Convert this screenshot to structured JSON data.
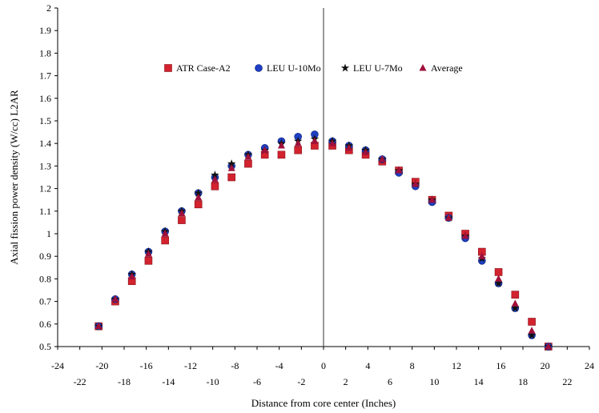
{
  "chart_data": {
    "type": "scatter",
    "title": "",
    "xlabel": "Distance from core center (Inches)",
    "ylabel": "Axial fission power density (W/cc) L2AR",
    "xlim": [
      -24,
      24
    ],
    "ylim": [
      0.5,
      2
    ],
    "x_ticks_upper": [
      "-24",
      "-20",
      "-16",
      "-12",
      "-8",
      "-4",
      "0",
      "4",
      "8",
      "12",
      "16",
      "20",
      "24"
    ],
    "x_ticks_lower": [
      "-22",
      "-18",
      "-14",
      "-10",
      "-6",
      "-2",
      "2",
      "6",
      "10",
      "14",
      "18",
      "22"
    ],
    "y_ticks": [
      "0.5",
      "0.6",
      "0.7",
      "0.8",
      "0.9",
      "1",
      "1.1",
      "1.2",
      "1.3",
      "1.4",
      "1.5",
      "1.6",
      "1.7",
      "1.8",
      "1.9",
      "2"
    ],
    "grid": false,
    "vertical_reference_line_x": 0,
    "legend_position": "top-center",
    "x": [
      -20.3,
      -18.8,
      -17.3,
      -15.8,
      -14.3,
      -12.8,
      -11.3,
      -9.8,
      -8.3,
      -6.8,
      -5.3,
      -3.8,
      -2.3,
      -0.8,
      0.8,
      2.3,
      3.8,
      5.3,
      6.8,
      8.3,
      9.8,
      11.3,
      12.8,
      14.3,
      15.8,
      17.3,
      18.8,
      20.3
    ],
    "series": [
      {
        "name": "ATR Case-A2",
        "marker": "square",
        "color": "#d2232e",
        "values": [
          0.59,
          0.7,
          0.79,
          0.88,
          0.97,
          1.06,
          1.13,
          1.21,
          1.25,
          1.31,
          1.35,
          1.35,
          1.37,
          1.39,
          1.39,
          1.37,
          1.35,
          1.32,
          1.28,
          1.23,
          1.15,
          1.08,
          1.0,
          0.92,
          0.83,
          0.73,
          0.61,
          0.5
        ]
      },
      {
        "name": "LEU U-10Mo",
        "marker": "circle",
        "color": "#1f3fc4",
        "values": [
          0.59,
          0.71,
          0.82,
          0.92,
          1.01,
          1.1,
          1.18,
          1.25,
          1.3,
          1.35,
          1.38,
          1.41,
          1.43,
          1.44,
          1.41,
          1.39,
          1.37,
          1.33,
          1.27,
          1.21,
          1.14,
          1.07,
          0.98,
          0.88,
          0.78,
          0.67,
          0.55,
          0.5
        ]
      },
      {
        "name": "LEU U-7Mo",
        "marker": "star",
        "color": "#111111",
        "values": [
          0.59,
          0.71,
          0.82,
          0.92,
          1.01,
          1.1,
          1.18,
          1.26,
          1.31,
          1.35,
          1.37,
          1.4,
          1.41,
          1.42,
          1.41,
          1.39,
          1.37,
          1.33,
          1.28,
          1.22,
          1.15,
          1.07,
          0.99,
          0.89,
          0.78,
          0.67,
          0.55,
          0.5
        ]
      },
      {
        "name": "Average",
        "marker": "triangle",
        "color": "#a0103a",
        "values": [
          0.59,
          0.71,
          0.81,
          0.91,
          1.0,
          1.09,
          1.16,
          1.24,
          1.29,
          1.34,
          1.37,
          1.39,
          1.4,
          1.41,
          1.4,
          1.38,
          1.36,
          1.33,
          1.28,
          1.22,
          1.15,
          1.07,
          0.99,
          0.9,
          0.8,
          0.69,
          0.57,
          0.5
        ]
      }
    ]
  }
}
